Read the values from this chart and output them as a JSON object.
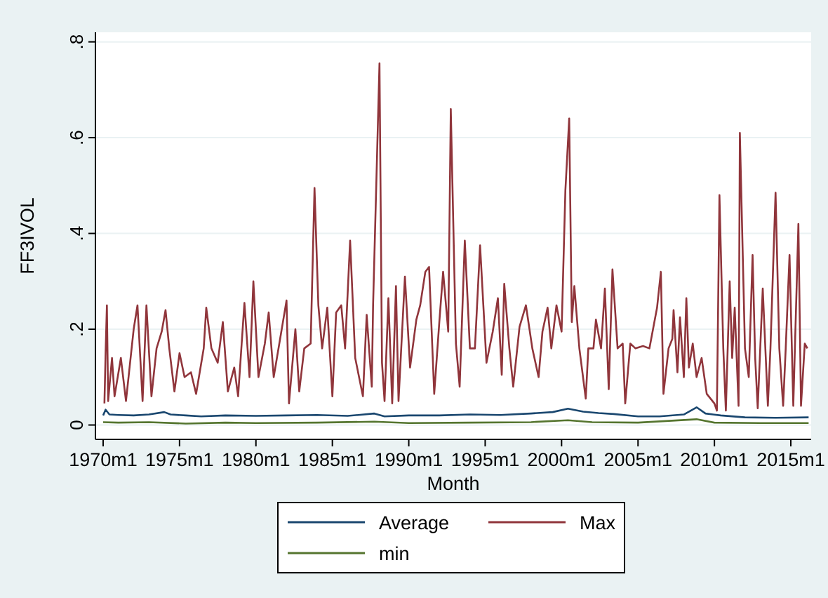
{
  "chart_data": {
    "type": "line",
    "xlabel": "Month",
    "ylabel": "FF3IVOL",
    "xlim": [
      "1969-07",
      "2016-05"
    ],
    "ylim": [
      -0.03,
      0.82
    ],
    "xticks": [
      {
        "value": "1970-01",
        "label": "1970m1"
      },
      {
        "value": "1975-01",
        "label": "1975m1"
      },
      {
        "value": "1980-01",
        "label": "1980m1"
      },
      {
        "value": "1985-01",
        "label": "1985m1"
      },
      {
        "value": "1990-01",
        "label": "1990m1"
      },
      {
        "value": "1995-01",
        "label": "1995m1"
      },
      {
        "value": "2000-01",
        "label": "2000m1"
      },
      {
        "value": "2005-01",
        "label": "2005m1"
      },
      {
        "value": "2010-01",
        "label": "2010m1"
      },
      {
        "value": "2015-01",
        "label": "2015m1"
      }
    ],
    "yticks": [
      {
        "value": 0,
        "label": "0"
      },
      {
        "value": 0.2,
        "label": ".2"
      },
      {
        "value": 0.4,
        "label": ".4"
      },
      {
        "value": 0.6,
        "label": ".6"
      },
      {
        "value": 0.8,
        "label": ".8"
      }
    ],
    "grid": "y",
    "legend": "bottom",
    "line_style": "solid",
    "marker": "none",
    "series": [
      {
        "name": "Average",
        "color": "#1a476f",
        "x": [
          "1970-01",
          "1970-03",
          "1970-06",
          "1971-01",
          "1972-01",
          "1973-01",
          "1974-01",
          "1974-06",
          "1975-06",
          "1976-06",
          "1978-01",
          "1980-01",
          "1982-01",
          "1984-01",
          "1986-01",
          "1987-10",
          "1988-06",
          "1990-01",
          "1992-01",
          "1994-01",
          "1996-01",
          "1998-01",
          "1999-06",
          "2000-06",
          "2001-06",
          "2002-06",
          "2003-06",
          "2005-01",
          "2006-06",
          "2008-01",
          "2008-11",
          "2009-06",
          "2010-06",
          "2012-01",
          "2014-01",
          "2016-03"
        ],
        "values": [
          0.02,
          0.032,
          0.022,
          0.021,
          0.02,
          0.022,
          0.027,
          0.022,
          0.02,
          0.018,
          0.02,
          0.019,
          0.02,
          0.021,
          0.019,
          0.024,
          0.018,
          0.02,
          0.02,
          0.022,
          0.021,
          0.024,
          0.027,
          0.034,
          0.028,
          0.025,
          0.023,
          0.018,
          0.018,
          0.022,
          0.037,
          0.024,
          0.02,
          0.016,
          0.015,
          0.016
        ]
      },
      {
        "name": "Max",
        "color": "#90353b",
        "x": [
          "1970-02",
          "1970-03",
          "1970-04",
          "1970-05",
          "1970-08",
          "1970-10",
          "1971-03",
          "1971-07",
          "1972-01",
          "1972-04",
          "1972-08",
          "1972-11",
          "1973-03",
          "1973-07",
          "1973-11",
          "1974-02",
          "1974-05",
          "1974-09",
          "1975-01",
          "1975-05",
          "1975-10",
          "1976-02",
          "1976-08",
          "1976-10",
          "1977-02",
          "1977-07",
          "1977-11",
          "1978-03",
          "1978-08",
          "1978-11",
          "1979-04",
          "1979-08",
          "1979-11",
          "1980-03",
          "1980-08",
          "1980-11",
          "1981-03",
          "1981-08",
          "1982-01",
          "1982-03",
          "1982-08",
          "1982-11",
          "1983-03",
          "1983-08",
          "1983-11",
          "1984-02",
          "1984-05",
          "1984-09",
          "1985-01",
          "1985-04",
          "1985-08",
          "1985-11",
          "1986-03",
          "1986-07",
          "1987-01",
          "1987-04",
          "1987-08",
          "1987-09",
          "1988-02",
          "1988-04",
          "1988-06",
          "1988-09",
          "1988-12",
          "1989-03",
          "1989-05",
          "1989-10",
          "1990-02",
          "1990-07",
          "1990-10",
          "1991-02",
          "1991-05",
          "1991-09",
          "1992-01",
          "1992-04",
          "1992-08",
          "1992-10",
          "1993-02",
          "1993-05",
          "1993-09",
          "1994-01",
          "1994-05",
          "1994-09",
          "1995-02",
          "1995-07",
          "1995-11",
          "1996-02",
          "1996-04",
          "1996-08",
          "1996-11",
          "1997-04",
          "1997-09",
          "1998-02",
          "1998-07",
          "1998-10",
          "1999-02",
          "1999-05",
          "1999-09",
          "2000-01",
          "2000-04",
          "2000-07",
          "2000-09",
          "2000-11",
          "2001-03",
          "2001-08",
          "2001-10",
          "2002-02",
          "2002-04",
          "2002-08",
          "2002-11",
          "2003-02",
          "2003-05",
          "2003-09",
          "2004-01",
          "2004-03",
          "2004-07",
          "2004-11",
          "2005-05",
          "2005-10",
          "2006-04",
          "2006-07",
          "2006-09",
          "2007-01",
          "2007-04",
          "2007-05",
          "2007-08",
          "2007-10",
          "2008-01",
          "2008-03",
          "2008-05",
          "2008-08",
          "2008-11",
          "2009-03",
          "2009-07",
          "2010-01",
          "2010-03",
          "2010-05",
          "2010-08",
          "2010-10",
          "2011-01",
          "2011-03",
          "2011-05",
          "2011-08",
          "2011-09",
          "2012-01",
          "2012-04",
          "2012-07",
          "2012-09",
          "2012-11",
          "2013-03",
          "2013-07",
          "2013-09",
          "2014-01",
          "2014-04",
          "2014-07",
          "2014-09",
          "2014-12",
          "2015-03",
          "2015-07",
          "2015-09",
          "2015-12",
          "2016-02"
        ],
        "values": [
          0.045,
          0.15,
          0.25,
          0.05,
          0.14,
          0.06,
          0.14,
          0.05,
          0.2,
          0.25,
          0.05,
          0.25,
          0.06,
          0.16,
          0.195,
          0.24,
          0.16,
          0.07,
          0.15,
          0.1,
          0.11,
          0.065,
          0.16,
          0.245,
          0.16,
          0.13,
          0.215,
          0.07,
          0.12,
          0.06,
          0.255,
          0.1,
          0.3,
          0.1,
          0.17,
          0.235,
          0.1,
          0.18,
          0.26,
          0.045,
          0.2,
          0.07,
          0.16,
          0.17,
          0.495,
          0.25,
          0.16,
          0.245,
          0.06,
          0.235,
          0.25,
          0.16,
          0.385,
          0.14,
          0.06,
          0.23,
          0.08,
          0.25,
          0.755,
          0.13,
          0.05,
          0.265,
          0.045,
          0.29,
          0.05,
          0.31,
          0.12,
          0.22,
          0.25,
          0.32,
          0.33,
          0.065,
          0.215,
          0.32,
          0.195,
          0.66,
          0.17,
          0.08,
          0.385,
          0.16,
          0.16,
          0.375,
          0.13,
          0.195,
          0.265,
          0.105,
          0.295,
          0.16,
          0.08,
          0.205,
          0.25,
          0.16,
          0.1,
          0.195,
          0.245,
          0.16,
          0.25,
          0.195,
          0.49,
          0.64,
          0.215,
          0.29,
          0.16,
          0.055,
          0.16,
          0.16,
          0.22,
          0.16,
          0.285,
          0.075,
          0.325,
          0.16,
          0.17,
          0.045,
          0.17,
          0.16,
          0.165,
          0.16,
          0.245,
          0.32,
          0.065,
          0.16,
          0.18,
          0.24,
          0.11,
          0.225,
          0.1,
          0.265,
          0.12,
          0.17,
          0.1,
          0.14,
          0.065,
          0.045,
          0.03,
          0.48,
          0.16,
          0.03,
          0.3,
          0.14,
          0.245,
          0.04,
          0.61,
          0.16,
          0.1,
          0.355,
          0.14,
          0.035,
          0.285,
          0.04,
          0.16,
          0.485,
          0.16,
          0.04,
          0.16,
          0.355,
          0.04,
          0.42,
          0.04,
          0.17,
          0.16
        ]
      },
      {
        "name": "min",
        "color": "#55752f",
        "x": [
          "1970-01",
          "1971-01",
          "1973-01",
          "1975-06",
          "1978-01",
          "1980-01",
          "1984-01",
          "1987-10",
          "1990-01",
          "1994-01",
          "1998-01",
          "2000-06",
          "2002-01",
          "2005-01",
          "2008-11",
          "2010-01",
          "2013-01",
          "2016-03"
        ],
        "values": [
          0.006,
          0.005,
          0.006,
          0.003,
          0.005,
          0.004,
          0.005,
          0.007,
          0.004,
          0.005,
          0.006,
          0.01,
          0.006,
          0.005,
          0.012,
          0.005,
          0.004,
          0.004
        ]
      }
    ]
  }
}
